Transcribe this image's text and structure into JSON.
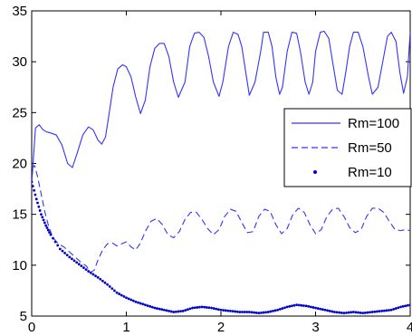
{
  "chart_data": {
    "type": "line",
    "title": "",
    "xlabel": "",
    "ylabel": "",
    "xlim": [
      0,
      4
    ],
    "ylim": [
      5,
      35
    ],
    "x_ticks": [
      "0",
      "1",
      "2",
      "3",
      "4"
    ],
    "y_ticks": [
      "5",
      "10",
      "15",
      "20",
      "25",
      "30",
      "35"
    ],
    "grid": false,
    "legend_position": "right",
    "series": [
      {
        "name": "Rm=100",
        "style": "solid",
        "color": "#3333ff",
        "x": [
          0,
          0.04,
          0.08,
          0.12,
          0.16,
          0.2,
          0.26,
          0.32,
          0.38,
          0.43,
          0.48,
          0.54,
          0.6,
          0.65,
          0.7,
          0.74,
          0.78,
          0.82,
          0.86,
          0.91,
          0.96,
          1.0,
          1.05,
          1.1,
          1.15,
          1.2,
          1.25,
          1.3,
          1.35,
          1.4,
          1.45,
          1.5,
          1.55,
          1.62,
          1.67,
          1.72,
          1.77,
          1.82,
          1.87,
          1.92,
          1.98,
          2.02,
          2.08,
          2.13,
          2.18,
          2.22,
          2.27,
          2.3,
          2.36,
          2.42,
          2.45,
          2.5,
          2.54,
          2.58,
          2.62,
          2.65,
          2.7,
          2.75,
          2.8,
          2.84,
          2.89,
          2.93,
          2.97,
          3.0,
          3.05,
          3.09,
          3.14,
          3.18,
          3.23,
          3.28,
          3.32,
          3.36,
          3.4,
          3.45,
          3.5,
          3.56,
          3.6,
          3.66,
          3.72,
          3.76,
          3.8,
          3.85,
          3.89,
          3.93,
          3.97,
          4.0
        ],
        "values": [
          18.0,
          23.5,
          23.8,
          23.3,
          23.1,
          23.0,
          22.8,
          21.8,
          20.0,
          19.6,
          21.0,
          22.8,
          23.6,
          23.3,
          22.3,
          21.9,
          22.6,
          25.0,
          27.5,
          29.3,
          29.7,
          29.5,
          28.5,
          26.5,
          24.9,
          26.2,
          29.5,
          31.3,
          31.8,
          31.8,
          30.5,
          28.0,
          26.5,
          28.0,
          31.5,
          32.8,
          32.9,
          32.4,
          30.5,
          28.0,
          26.6,
          28.0,
          31.5,
          32.9,
          32.7,
          31.5,
          28.5,
          26.7,
          28.0,
          31.0,
          32.9,
          32.9,
          31.5,
          28.5,
          26.8,
          27.5,
          31.0,
          32.9,
          32.8,
          31.0,
          28.0,
          26.8,
          28.0,
          31.0,
          32.9,
          33.0,
          32.3,
          30.0,
          27.2,
          26.8,
          29.0,
          31.5,
          32.9,
          32.9,
          31.5,
          28.5,
          26.8,
          27.5,
          30.5,
          32.5,
          32.9,
          32.0,
          29.0,
          26.9,
          28.5,
          32.9
        ]
      },
      {
        "name": "Rm=50",
        "style": "dashed",
        "color": "#3333ff",
        "x": [
          0,
          0.03,
          0.06,
          0.1,
          0.14,
          0.18,
          0.22,
          0.28,
          0.34,
          0.4,
          0.46,
          0.52,
          0.58,
          0.62,
          0.66,
          0.7,
          0.75,
          0.8,
          0.85,
          0.9,
          0.95,
          1.0,
          1.05,
          1.1,
          1.15,
          1.2,
          1.26,
          1.32,
          1.38,
          1.44,
          1.5,
          1.56,
          1.62,
          1.68,
          1.74,
          1.8,
          1.86,
          1.92,
          1.98,
          2.04,
          2.1,
          2.16,
          2.22,
          2.28,
          2.34,
          2.4,
          2.46,
          2.52,
          2.58,
          2.64,
          2.7,
          2.76,
          2.82,
          2.88,
          2.94,
          3.0,
          3.06,
          3.12,
          3.18,
          3.24,
          3.3,
          3.36,
          3.42,
          3.48,
          3.54,
          3.6,
          3.66,
          3.72,
          3.78,
          3.84,
          3.9,
          3.95,
          4.0
        ],
        "values": [
          19.5,
          19.8,
          18.8,
          17.0,
          15.2,
          13.8,
          12.8,
          12.1,
          11.8,
          11.3,
          10.8,
          10.3,
          9.9,
          9.3,
          9.5,
          10.5,
          11.5,
          12.1,
          12.2,
          11.9,
          12.1,
          12.3,
          11.8,
          11.5,
          12.2,
          13.3,
          14.3,
          14.6,
          14.0,
          13.0,
          12.7,
          13.3,
          14.5,
          15.2,
          15.2,
          14.5,
          13.6,
          13.0,
          13.5,
          14.8,
          15.5,
          15.3,
          14.2,
          13.2,
          13.3,
          14.8,
          15.5,
          15.3,
          14.0,
          13.1,
          13.6,
          15.0,
          15.6,
          15.2,
          14.0,
          13.1,
          13.5,
          14.8,
          15.5,
          15.6,
          14.8,
          13.7,
          13.2,
          13.5,
          14.8,
          15.6,
          15.6,
          15.2,
          14.3,
          13.5,
          13.4,
          13.5,
          13.4
        ]
      },
      {
        "name": "Rm=10",
        "style": "dotted",
        "color": "#0000cc",
        "x": [
          0,
          0.05,
          0.1,
          0.15,
          0.2,
          0.3,
          0.4,
          0.5,
          0.6,
          0.7,
          0.8,
          0.9,
          1.0,
          1.1,
          1.2,
          1.3,
          1.4,
          1.5,
          1.6,
          1.7,
          1.8,
          1.9,
          2.0,
          2.1,
          2.2,
          2.3,
          2.4,
          2.5,
          2.6,
          2.7,
          2.8,
          2.9,
          3.0,
          3.1,
          3.2,
          3.3,
          3.4,
          3.5,
          3.6,
          3.7,
          3.8,
          3.9,
          4.0
        ],
        "values": [
          18.2,
          16.5,
          15.0,
          13.9,
          13.0,
          11.6,
          10.8,
          10.1,
          9.4,
          8.8,
          8.1,
          7.3,
          6.8,
          6.4,
          6.1,
          5.8,
          5.6,
          5.4,
          5.5,
          5.8,
          5.9,
          5.8,
          5.6,
          5.5,
          5.4,
          5.4,
          5.3,
          5.4,
          5.6,
          5.9,
          6.1,
          6.0,
          5.8,
          5.6,
          5.4,
          5.3,
          5.4,
          5.3,
          5.4,
          5.5,
          5.6,
          5.9,
          6.1
        ]
      }
    ]
  }
}
